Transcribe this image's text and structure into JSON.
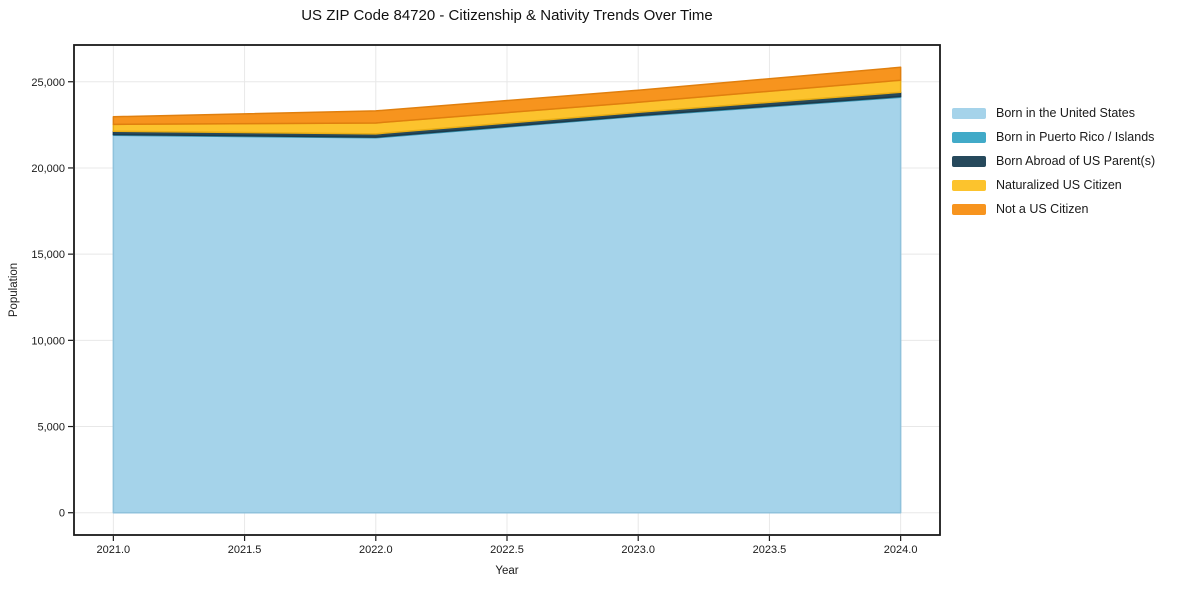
{
  "chart": {
    "title": "US ZIP Code 84720 - Citizenship & Nativity Trends Over Time",
    "xlabel": "Year",
    "ylabel": "Population"
  },
  "chart_data": {
    "type": "area",
    "stacked": true,
    "title": "US ZIP Code 84720 - Citizenship & Nativity Trends Over Time",
    "xlabel": "Year",
    "ylabel": "Population",
    "x": [
      2021,
      2022,
      2023,
      2024
    ],
    "series": [
      {
        "name": "Born in the United States",
        "color": "#a5d3ea",
        "edge": "#8fc2dc",
        "values": [
          21900,
          21750,
          23000,
          24100
        ]
      },
      {
        "name": "Born in Puerto Rico / Islands",
        "color": "#41aac8",
        "edge": "#3895b2",
        "values": [
          40,
          40,
          40,
          50
        ]
      },
      {
        "name": "Born Abroad of US Parent(s)",
        "color": "#26495c",
        "edge": "#1d3a4a",
        "values": [
          190,
          190,
          190,
          240
        ]
      },
      {
        "name": "Naturalized US Citizen",
        "color": "#fcc32d",
        "edge": "#e9ae15",
        "values": [
          400,
          630,
          580,
          700
        ]
      },
      {
        "name": "Not a US Citizen",
        "color": "#f7941e",
        "edge": "#e07f0e",
        "values": [
          440,
          700,
          700,
          750
        ]
      }
    ],
    "stack_totals": [
      22970,
      23310,
      24510,
      25840
    ],
    "xticks": [
      2021,
      2021.5,
      2022,
      2022.5,
      2023,
      2023.5,
      2024
    ],
    "xtick_labels": [
      "2021.0",
      "2021.5",
      "2022.0",
      "2022.5",
      "2023.0",
      "2023.5",
      "2024.0"
    ],
    "yticks": [
      0,
      5000,
      10000,
      15000,
      20000,
      25000
    ],
    "ytick_labels": [
      "0",
      "5,000",
      "10,000",
      "15,000",
      "20,000",
      "25,000"
    ],
    "xlim": [
      2020.85,
      2024.15
    ],
    "ylim": [
      -1292,
      27132
    ],
    "grid": true,
    "legend_position": "right-outside"
  },
  "colors": {
    "background": "#ffffff",
    "grid": "#e8e8e8",
    "spine": "#1a1a1a",
    "tick_text": "#1a1a1a"
  }
}
